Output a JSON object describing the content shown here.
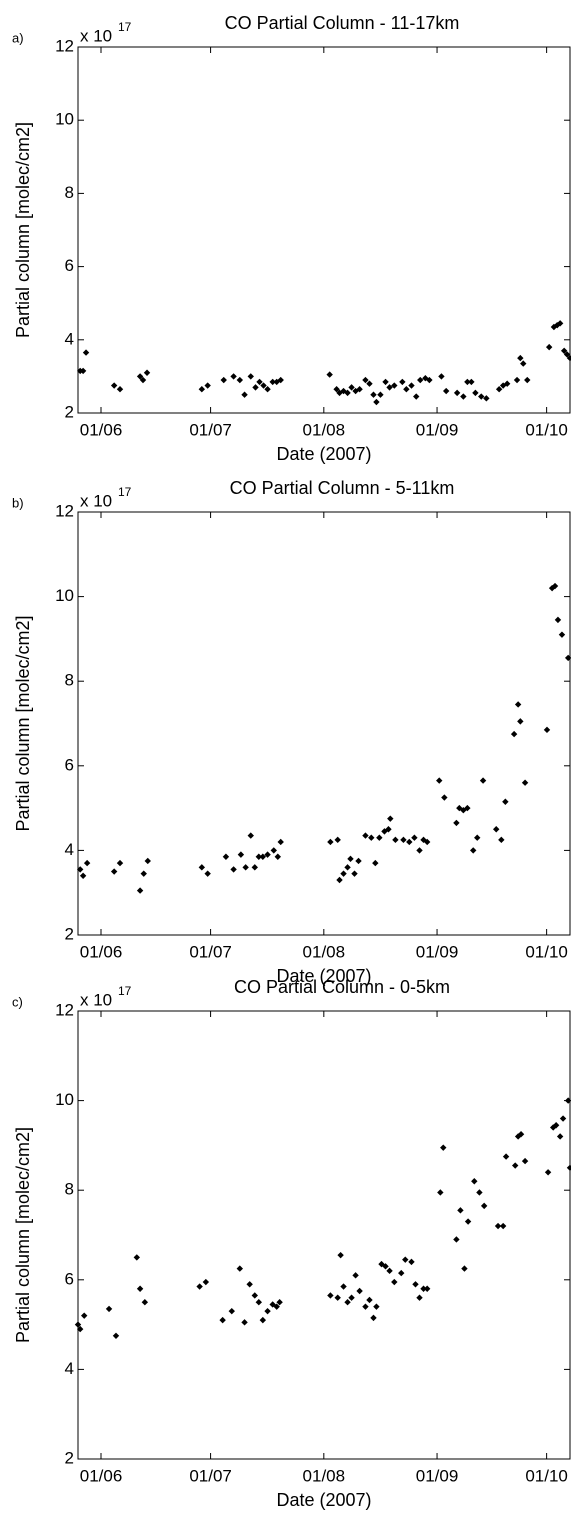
{
  "chart_data": [
    {
      "type": "scatter",
      "panel_label": "a)",
      "title": "CO Partial Column - 11-17km",
      "scale_label": "x 10",
      "scale_exponent": "17",
      "xlabel": "Date (2007)",
      "ylabel": "Partial column [molec/cm2]",
      "color": "#000000",
      "xlim": [
        145.7,
        280.4
      ],
      "ylim": [
        2,
        12
      ],
      "yticks": [
        2,
        4,
        6,
        8,
        10,
        12
      ],
      "xticks": [
        {
          "value": 152,
          "label": "01/06"
        },
        {
          "value": 182,
          "label": "01/07"
        },
        {
          "value": 213,
          "label": "01/08"
        },
        {
          "value": 244,
          "label": "01/09"
        },
        {
          "value": 274,
          "label": "01/10"
        }
      ],
      "x": [
        146.3,
        147.1,
        147.9,
        155.6,
        157.2,
        162.7,
        163.5,
        164.6,
        179.6,
        181.2,
        185.6,
        188.3,
        190.0,
        191.3,
        193.0,
        194.3,
        195.4,
        196.5,
        197.6,
        199.0,
        200.1,
        201.2,
        214.6,
        216.5,
        217.3,
        218.4,
        219.5,
        220.6,
        221.7,
        222.8,
        224.4,
        225.5,
        226.6,
        227.4,
        228.5,
        229.9,
        231.0,
        232.3,
        234.5,
        235.6,
        237.0,
        238.3,
        239.4,
        240.8,
        241.9,
        245.2,
        246.5,
        249.5,
        251.2,
        252.3,
        253.4,
        254.5,
        256.1,
        257.5,
        261.0,
        262.1,
        263.2,
        265.9,
        266.8,
        267.6,
        268.7,
        274.7,
        276.0,
        276.9,
        277.7,
        278.8,
        279.6,
        280.4
      ],
      "values": [
        3.15,
        3.15,
        3.65,
        2.75,
        2.65,
        3.0,
        2.9,
        3.1,
        2.65,
        2.75,
        2.9,
        3.0,
        2.9,
        2.5,
        3.0,
        2.7,
        2.85,
        2.75,
        2.65,
        2.85,
        2.85,
        2.9,
        3.05,
        2.65,
        2.55,
        2.6,
        2.55,
        2.7,
        2.6,
        2.65,
        2.9,
        2.8,
        2.5,
        2.3,
        2.5,
        2.85,
        2.7,
        2.75,
        2.85,
        2.65,
        2.75,
        2.45,
        2.9,
        2.95,
        2.9,
        3.0,
        2.6,
        2.55,
        2.45,
        2.85,
        2.85,
        2.55,
        2.45,
        2.4,
        2.65,
        2.75,
        2.8,
        2.9,
        3.5,
        3.35,
        2.9,
        3.8,
        4.35,
        4.4,
        4.45,
        3.7,
        3.6,
        3.5
      ]
    },
    {
      "type": "scatter",
      "panel_label": "b)",
      "title": "CO Partial Column - 5-11km",
      "scale_label": "x 10",
      "scale_exponent": "17",
      "xlabel": "Date (2007)",
      "ylabel": "Partial column [molec/cm2]",
      "color": "#000000",
      "xlim": [
        145.7,
        280.4
      ],
      "ylim": [
        2,
        12
      ],
      "yticks": [
        2,
        4,
        6,
        8,
        10,
        12
      ],
      "xticks": [
        {
          "value": 152,
          "label": "01/06"
        },
        {
          "value": 182,
          "label": "01/07"
        },
        {
          "value": 213,
          "label": "01/08"
        },
        {
          "value": 244,
          "label": "01/09"
        },
        {
          "value": 274,
          "label": "01/10"
        }
      ],
      "x": [
        146.3,
        147.1,
        148.2,
        155.6,
        157.2,
        162.7,
        163.7,
        164.8,
        179.6,
        181.2,
        186.2,
        188.3,
        190.3,
        191.6,
        193.0,
        194.1,
        195.2,
        196.3,
        197.6,
        199.3,
        200.4,
        201.2,
        214.8,
        216.8,
        217.3,
        218.4,
        219.5,
        220.3,
        221.4,
        222.5,
        224.4,
        226.0,
        227.1,
        228.2,
        229.6,
        230.7,
        231.2,
        232.6,
        234.8,
        236.4,
        237.8,
        239.2,
        240.3,
        241.3,
        244.6,
        246.0,
        249.3,
        250.1,
        251.2,
        252.3,
        253.9,
        255.0,
        256.6,
        260.2,
        261.6,
        262.7,
        265.1,
        266.2,
        266.8,
        268.1,
        274.1,
        275.5,
        276.3,
        277.1,
        278.2,
        279.9
      ],
      "values": [
        3.55,
        3.4,
        3.7,
        3.5,
        3.7,
        3.05,
        3.45,
        3.75,
        3.6,
        3.45,
        3.85,
        3.55,
        3.9,
        3.6,
        4.35,
        3.6,
        3.85,
        3.85,
        3.9,
        4.0,
        3.85,
        4.2,
        4.2,
        4.25,
        3.3,
        3.45,
        3.6,
        3.8,
        3.45,
        3.75,
        4.35,
        4.3,
        3.7,
        4.3,
        4.45,
        4.5,
        4.75,
        4.25,
        4.25,
        4.2,
        4.3,
        4.0,
        4.25,
        4.2,
        5.65,
        5.25,
        4.65,
        5.0,
        4.95,
        5.0,
        4.0,
        4.3,
        5.65,
        4.5,
        4.25,
        5.15,
        6.75,
        7.45,
        7.05,
        5.6,
        6.85,
        10.2,
        10.25,
        9.45,
        9.1,
        8.55
      ]
    },
    {
      "type": "scatter",
      "panel_label": "c)",
      "title": "CO Partial Column - 0-5km",
      "scale_label": "x 10",
      "scale_exponent": "17",
      "xlabel": "Date (2007)",
      "ylabel": "Partial column [molec/cm2]",
      "color": "#000000",
      "xlim": [
        145.7,
        280.4
      ],
      "ylim": [
        2,
        12
      ],
      "yticks": [
        2,
        4,
        6,
        8,
        10,
        12
      ],
      "xticks": [
        {
          "value": 152,
          "label": "01/06"
        },
        {
          "value": 182,
          "label": "01/07"
        },
        {
          "value": 213,
          "label": "01/08"
        },
        {
          "value": 244,
          "label": "01/09"
        },
        {
          "value": 274,
          "label": "01/10"
        }
      ],
      "x": [
        145.7,
        146.3,
        147.4,
        154.2,
        156.1,
        161.8,
        162.7,
        164.0,
        179.0,
        180.7,
        185.3,
        187.8,
        190.0,
        191.3,
        192.7,
        194.1,
        195.2,
        196.3,
        197.6,
        199.0,
        200.1,
        200.9,
        214.8,
        216.8,
        217.6,
        218.4,
        219.5,
        220.6,
        221.7,
        222.8,
        224.4,
        225.5,
        226.6,
        227.4,
        228.8,
        229.9,
        231.0,
        232.3,
        234.2,
        235.3,
        237.0,
        238.1,
        239.2,
        240.3,
        241.3,
        244.9,
        245.7,
        249.3,
        250.4,
        251.5,
        252.5,
        254.2,
        255.6,
        256.9,
        260.7,
        262.1,
        262.9,
        265.4,
        266.2,
        267.0,
        268.1,
        274.4,
        275.8,
        276.6,
        277.7,
        278.5,
        279.9,
        280.4
      ],
      "values": [
        5.0,
        4.9,
        5.2,
        5.35,
        4.75,
        6.5,
        5.8,
        5.5,
        5.85,
        5.95,
        5.1,
        5.3,
        6.25,
        5.05,
        5.9,
        5.65,
        5.5,
        5.1,
        5.3,
        5.45,
        5.4,
        5.5,
        5.65,
        5.6,
        6.55,
        5.85,
        5.5,
        5.6,
        6.1,
        5.75,
        5.4,
        5.55,
        5.15,
        5.4,
        6.35,
        6.3,
        6.2,
        5.95,
        6.15,
        6.45,
        6.4,
        5.9,
        5.6,
        5.8,
        5.8,
        7.95,
        8.95,
        6.9,
        7.55,
        6.25,
        7.3,
        8.2,
        7.95,
        7.65,
        7.2,
        7.2,
        8.75,
        8.55,
        9.2,
        9.25,
        8.65,
        8.4,
        9.4,
        9.45,
        9.2,
        9.6,
        10.0,
        8.5
      ]
    }
  ]
}
